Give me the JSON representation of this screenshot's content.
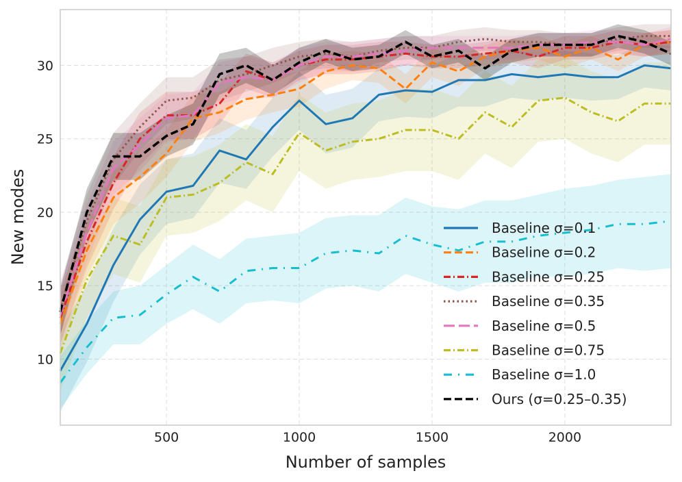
{
  "chart_data": {
    "type": "line",
    "title": "",
    "xlabel": "Number of samples",
    "ylabel": "New modes",
    "xlim": [
      100,
      2400
    ],
    "ylim": [
      5.5,
      33.8
    ],
    "xticks": [
      500,
      1000,
      1500,
      2000
    ],
    "yticks": [
      10,
      15,
      20,
      25,
      30
    ],
    "grid": true,
    "legend_position": "lower-right",
    "x": [
      100,
      200,
      300,
      400,
      500,
      600,
      700,
      800,
      900,
      1000,
      1100,
      1200,
      1300,
      1400,
      1500,
      1600,
      1700,
      1800,
      1900,
      2000,
      2100,
      2200,
      2300,
      2400
    ],
    "series": [
      {
        "name": "Baseline σ=0.1",
        "color": "#1f77b4",
        "dash": "solid",
        "values": [
          9.2,
          12.4,
          16.4,
          19.5,
          21.4,
          21.8,
          24.2,
          23.6,
          25.8,
          27.6,
          26.0,
          26.4,
          28.0,
          28.3,
          28.2,
          29.0,
          29.0,
          29.4,
          29.2,
          29.4,
          29.2,
          29.2,
          30.0,
          29.8
        ],
        "band": [
          2.8,
          2.6,
          2.5,
          2.4,
          2.2,
          2.2,
          2.2,
          2.0,
          2.0,
          2.0,
          2.0,
          2.0,
          1.8,
          1.8,
          1.8,
          1.8,
          1.8,
          1.6,
          1.6,
          1.6,
          1.6,
          1.5,
          1.5,
          1.5
        ]
      },
      {
        "name": "Baseline σ=0.2",
        "color": "#ff7f0e",
        "dash": "dashed",
        "values": [
          12.4,
          17.4,
          21.0,
          22.4,
          24.0,
          26.4,
          26.8,
          27.7,
          28.0,
          28.4,
          29.6,
          30.0,
          29.8,
          28.4,
          30.2,
          29.6,
          30.6,
          31.0,
          31.2,
          30.6,
          31.2,
          30.4,
          31.4,
          31.6
        ],
        "band": [
          1.8,
          1.8,
          1.8,
          1.8,
          1.6,
          1.6,
          1.4,
          1.4,
          1.2,
          1.2,
          1.2,
          1.0,
          1.0,
          1.0,
          1.0,
          1.0,
          0.8,
          0.8,
          0.8,
          0.8,
          0.8,
          0.8,
          0.8,
          0.8
        ]
      },
      {
        "name": "Baseline σ=0.25",
        "color": "#d62728",
        "dash": "dashdot",
        "values": [
          12.8,
          18.0,
          22.0,
          25.0,
          26.6,
          26.6,
          27.4,
          29.6,
          29.0,
          30.0,
          30.4,
          30.4,
          30.6,
          30.8,
          30.6,
          30.6,
          30.8,
          31.0,
          30.6,
          31.2,
          31.2,
          31.6,
          31.4,
          31.6
        ],
        "band": [
          1.8,
          1.8,
          1.8,
          1.8,
          1.6,
          1.6,
          1.4,
          1.2,
          1.2,
          1.0,
          1.0,
          1.0,
          1.0,
          0.8,
          0.8,
          0.8,
          0.8,
          0.8,
          0.8,
          0.8,
          0.8,
          0.8,
          0.8,
          0.8
        ]
      },
      {
        "name": "Baseline σ=0.35",
        "color": "#8c564b",
        "dash": "dotted",
        "values": [
          13.4,
          19.4,
          23.6,
          25.8,
          27.6,
          27.8,
          29.0,
          29.4,
          30.0,
          30.6,
          30.8,
          30.6,
          31.0,
          31.2,
          31.2,
          31.6,
          31.8,
          31.6,
          31.6,
          31.4,
          31.4,
          31.8,
          32.0,
          32.0
        ],
        "band": [
          1.8,
          1.8,
          1.8,
          1.6,
          1.6,
          1.4,
          1.4,
          1.2,
          1.2,
          1.0,
          1.0,
          1.0,
          0.8,
          0.8,
          0.8,
          0.8,
          0.8,
          0.8,
          0.8,
          0.8,
          0.8,
          0.8,
          0.8,
          0.8
        ]
      },
      {
        "name": "Baseline σ=0.5",
        "color": "#e377c2",
        "dash": "longdash",
        "values": [
          13.0,
          18.6,
          23.0,
          24.6,
          26.4,
          26.6,
          28.8,
          29.2,
          29.0,
          30.0,
          30.6,
          30.6,
          30.8,
          31.0,
          31.2,
          31.2,
          31.2,
          31.2,
          31.4,
          31.4,
          31.6,
          31.6,
          31.4,
          31.8
        ],
        "band": [
          2.0,
          2.0,
          1.8,
          1.8,
          1.6,
          1.6,
          1.4,
          1.4,
          1.2,
          1.2,
          1.0,
          1.0,
          1.0,
          1.0,
          0.8,
          0.8,
          0.8,
          0.8,
          0.8,
          0.8,
          0.8,
          0.8,
          0.8,
          0.8
        ]
      },
      {
        "name": "Baseline σ=0.75",
        "color": "#bcbd22",
        "dash": "dashdot",
        "values": [
          10.4,
          15.4,
          18.4,
          17.8,
          21.0,
          21.2,
          22.0,
          23.4,
          22.6,
          25.4,
          24.2,
          24.8,
          25.0,
          25.6,
          25.6,
          25.0,
          26.8,
          25.8,
          27.6,
          27.8,
          26.8,
          26.2,
          27.4,
          27.4
        ],
        "band": [
          2.6,
          2.6,
          2.6,
          2.6,
          2.6,
          2.6,
          2.6,
          2.6,
          2.6,
          2.6,
          2.6,
          2.6,
          2.6,
          2.8,
          2.8,
          2.8,
          2.8,
          2.8,
          2.8,
          2.8,
          2.8,
          2.8,
          2.8,
          2.8
        ]
      },
      {
        "name": "Baseline σ=1.0",
        "color": "#17becf",
        "dash": "sparse",
        "values": [
          8.4,
          10.8,
          12.8,
          13.0,
          14.4,
          15.6,
          14.6,
          16.0,
          16.2,
          16.2,
          17.2,
          17.4,
          17.2,
          18.4,
          17.8,
          17.4,
          18.0,
          18.0,
          18.4,
          18.6,
          18.8,
          19.2,
          19.2,
          19.4
        ],
        "band": [
          1.8,
          1.8,
          1.8,
          2.0,
          2.0,
          2.2,
          2.2,
          2.2,
          2.2,
          2.4,
          2.4,
          2.4,
          2.6,
          2.6,
          2.6,
          2.8,
          2.8,
          2.8,
          2.8,
          3.0,
          3.0,
          3.0,
          3.2,
          3.2
        ]
      },
      {
        "name": "Ours (σ=0.25–0.35)",
        "color": "#000000",
        "dash": "dashed",
        "values": [
          13.2,
          20.0,
          23.8,
          23.8,
          25.2,
          26.0,
          29.4,
          30.0,
          29.0,
          30.2,
          31.0,
          30.4,
          30.6,
          31.6,
          30.6,
          31.0,
          29.8,
          31.0,
          31.4,
          31.4,
          31.4,
          32.0,
          31.6,
          30.8
        ],
        "band": [
          1.6,
          1.6,
          1.6,
          1.6,
          1.4,
          1.4,
          1.4,
          1.2,
          1.0,
          1.0,
          0.8,
          0.8,
          0.8,
          0.8,
          0.8,
          0.8,
          0.8,
          0.8,
          0.8,
          0.8,
          0.8,
          0.8,
          0.8,
          0.8
        ]
      }
    ]
  }
}
